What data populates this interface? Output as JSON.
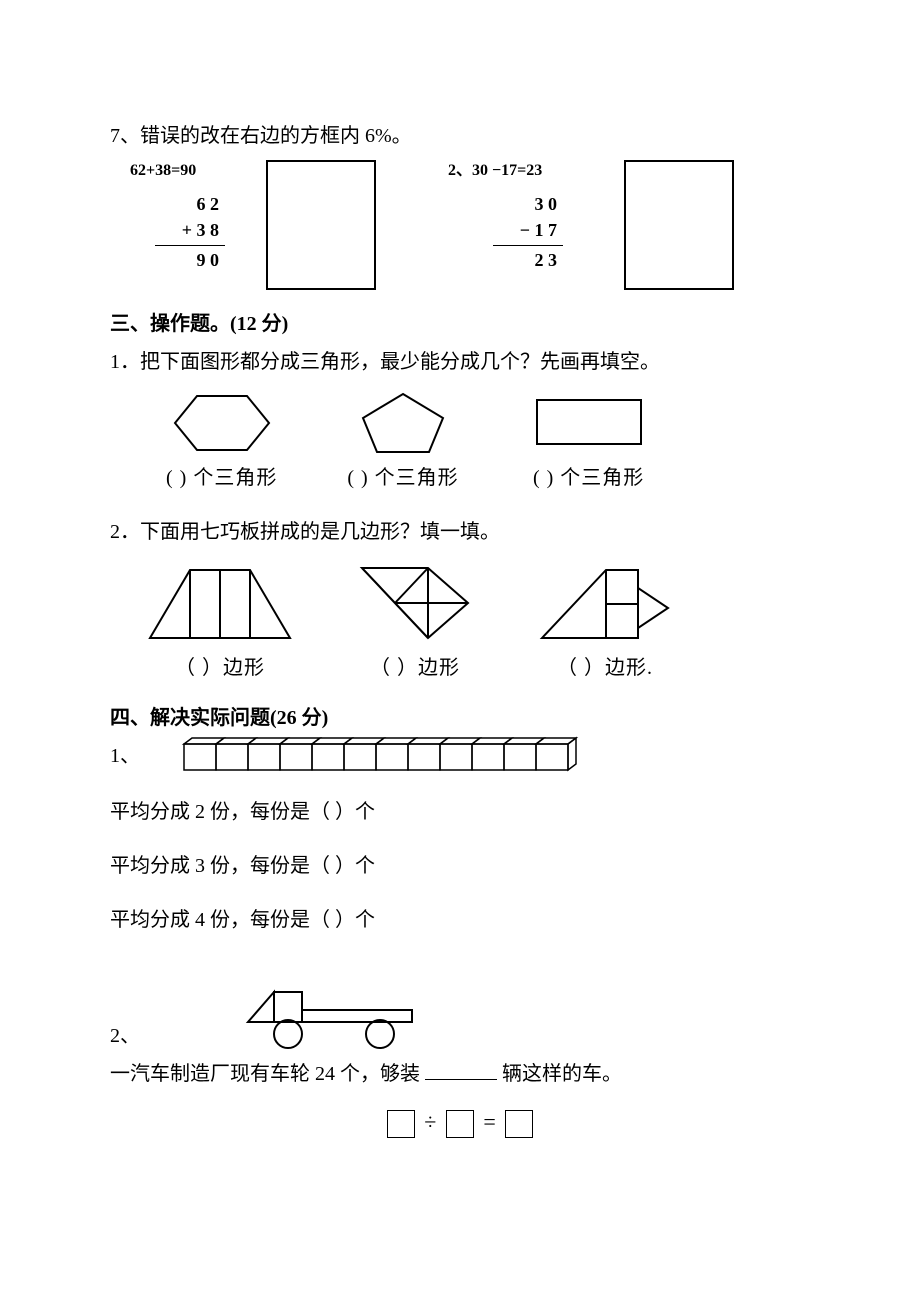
{
  "q7": {
    "prompt": "7、错误的改在右边的方框内 6%。",
    "calc1": {
      "header": "62+38=90",
      "line1": "6 2",
      "line2": "+ 3 8",
      "result": "9 0"
    },
    "calc2": {
      "header": "2、30 −17=23",
      "line1": "3 0",
      "line2": "− 1 7",
      "result": "2 3"
    }
  },
  "section3": {
    "title": "三、操作题。(12 分)",
    "q1": {
      "prompt": "1．把下面图形都分成三角形，最少能分成几个？先画再填空。",
      "shapes": [
        {
          "label": "(     ) 个三角形"
        },
        {
          "label": "(     ) 个三角形"
        },
        {
          "label": "(     ) 个三角形"
        }
      ]
    },
    "q2": {
      "prompt": "2．下面用七巧板拼成的是几边形？填一填。",
      "shapes": [
        {
          "label": "（      ）边形"
        },
        {
          "label": "（      ）边形"
        },
        {
          "label": "（      ）边形."
        }
      ]
    }
  },
  "section4": {
    "title": "四、解决实际问题(26 分)",
    "q1": {
      "label": "1、",
      "cube_count": 12,
      "lines": [
        "平均分成 2 份，每份是（       ）个",
        "平均分成 3 份，每份是（       ）个",
        "平均分成 4 份，每份是（       ）个"
      ]
    },
    "q2": {
      "label": "2、",
      "text_before": "一汽车制造厂现有车轮 24 个，够装",
      "text_after": "辆这样的车。",
      "op1": "÷",
      "op2": "="
    }
  },
  "colors": {
    "stroke": "#000000",
    "bg": "#ffffff"
  }
}
